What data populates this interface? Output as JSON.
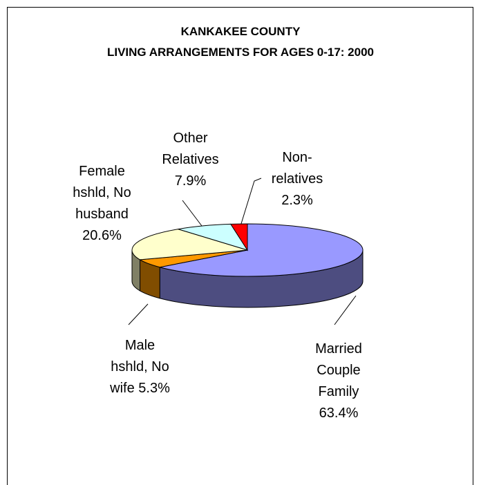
{
  "chart_data": {
    "type": "pie",
    "title": "KANKAKEE COUNTY",
    "subtitle": "LIVING ARRANGEMENTS FOR AGES 0-17:  2000",
    "categories": [
      "Married Couple Family",
      "Male hshld, No wife",
      "Female hshld, No husband",
      "Other Relatives",
      "Non-relatives"
    ],
    "values": [
      63.4,
      5.3,
      20.6,
      7.9,
      2.3
    ],
    "value_labels": [
      "63.4%",
      "5.3%",
      "20.6%",
      "7.9%",
      "2.3%"
    ],
    "colors": [
      "#9999ff",
      "#ff9900",
      "#ffffcc",
      "#ccffff",
      "#ff0000"
    ]
  }
}
